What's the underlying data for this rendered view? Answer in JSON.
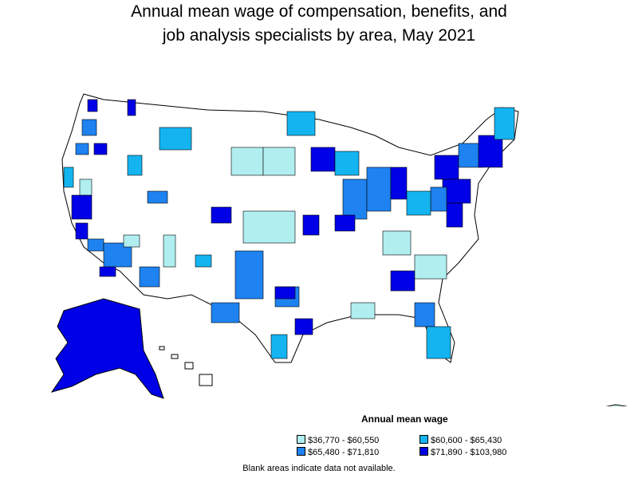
{
  "title_line1": "Annual mean wage of compensation, benefits, and",
  "title_line2": "job analysis specialists by area, May 2021",
  "legend": {
    "title": "Annual mean wage",
    "items": [
      {
        "label": "$36,770 - $60,550",
        "color": "#b0eef0"
      },
      {
        "label": "$60,600 - $65,430",
        "color": "#14b4f0"
      },
      {
        "label": "$65,480 - $71,810",
        "color": "#1e82f0"
      },
      {
        "label": "$71,890 - $103,980",
        "color": "#0000e6"
      }
    ]
  },
  "note": "Blank areas indicate data not available."
}
